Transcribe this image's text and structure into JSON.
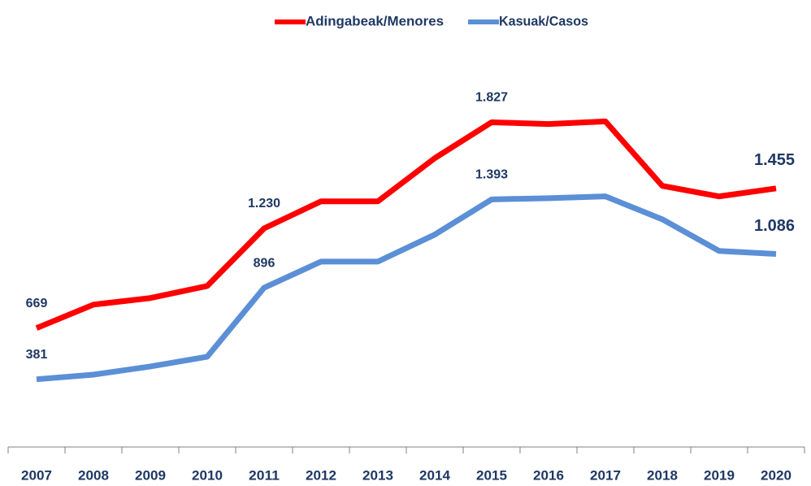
{
  "chart_data": {
    "type": "line",
    "categories": [
      "2007",
      "2008",
      "2009",
      "2010",
      "2011",
      "2012",
      "2013",
      "2014",
      "2015",
      "2016",
      "2017",
      "2018",
      "2019",
      "2020"
    ],
    "series": [
      {
        "name": "Adingabeak/Menores",
        "color": "#ff0000",
        "values": [
          669,
          801,
          838,
          906,
          1230,
          1382,
          1382,
          1625,
          1827,
          1817,
          1832,
          1469,
          1410,
          1455
        ],
        "value_labels": [
          "669",
          null,
          null,
          null,
          "1.230",
          null,
          null,
          null,
          "1.827",
          null,
          null,
          null,
          null,
          "1.455"
        ]
      },
      {
        "name": "Kasuak/Casos",
        "color": "#5b8fd6",
        "values": [
          381,
          407,
          453,
          508,
          896,
          1043,
          1043,
          1195,
          1393,
          1400,
          1410,
          1281,
          1103,
          1086
        ],
        "value_labels": [
          "381",
          null,
          null,
          null,
          "896",
          null,
          null,
          null,
          "1.393",
          null,
          null,
          null,
          null,
          "1.086"
        ]
      }
    ],
    "ylim": [
      0,
      2300
    ],
    "legend": "top"
  }
}
